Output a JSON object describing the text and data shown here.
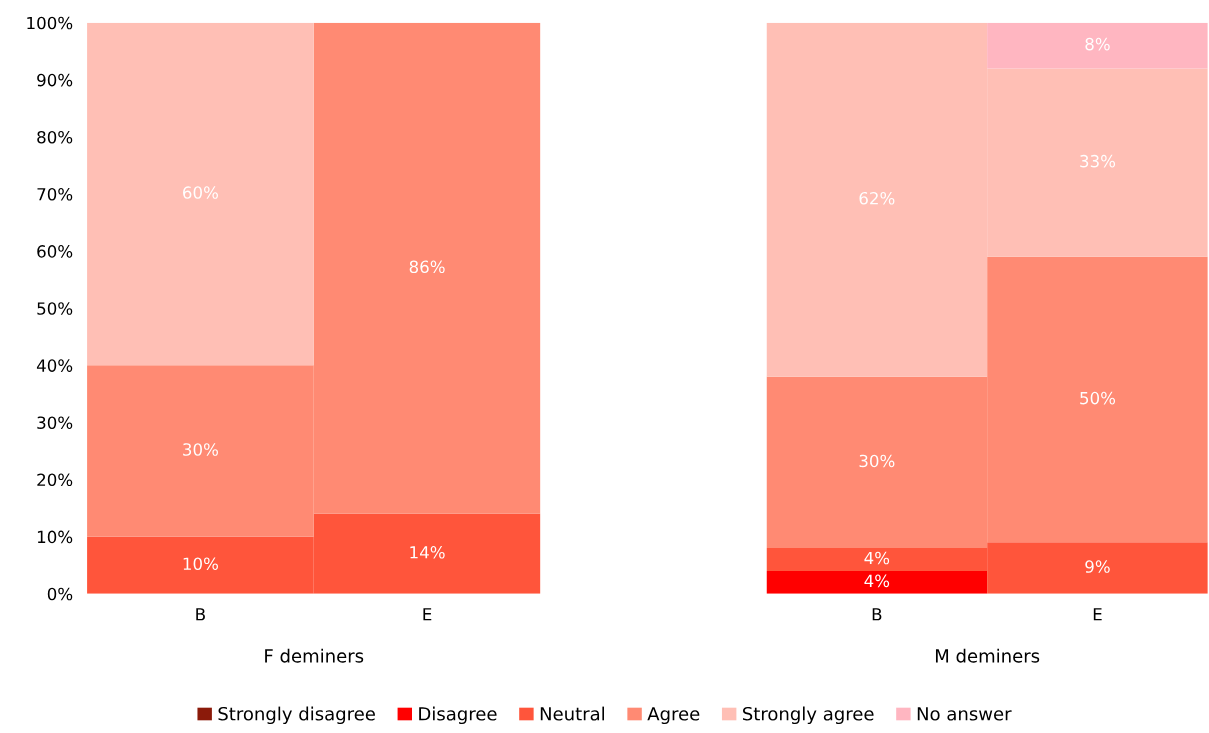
{
  "chart_data": [
    {
      "type": "bar",
      "stacked": true,
      "xlabel": "F deminers",
      "categories": [
        "B",
        "E"
      ],
      "ylim": [
        0,
        100
      ],
      "yticks": [
        {
          "value": 0,
          "label": "0%"
        },
        {
          "value": 10,
          "label": "10%"
        },
        {
          "value": 20,
          "label": "20%"
        },
        {
          "value": 30,
          "label": "30%"
        },
        {
          "value": 40,
          "label": "40%"
        },
        {
          "value": 50,
          "label": "50%"
        },
        {
          "value": 60,
          "label": "60%"
        },
        {
          "value": 70,
          "label": "70%"
        },
        {
          "value": 80,
          "label": "80%"
        },
        {
          "value": 90,
          "label": "90%"
        },
        {
          "value": 100,
          "label": "100%"
        }
      ],
      "grid": false,
      "legend": "bottom",
      "series": [
        {
          "name": "Strongly disagree",
          "color": "#8b1a0a",
          "values": [
            null,
            null
          ]
        },
        {
          "name": "Disagree",
          "color": "#ff0000",
          "values": [
            null,
            null
          ]
        },
        {
          "name": "Neutral",
          "color": "#ff553b",
          "values": [
            10,
            14
          ],
          "value_labels": [
            "10%",
            "14%"
          ]
        },
        {
          "name": "Agree",
          "color": "#ff8a73",
          "values": [
            30,
            86
          ],
          "value_labels": [
            "30%",
            "86%"
          ]
        },
        {
          "name": "Strongly agree",
          "color": "#ffbfb5",
          "values": [
            60,
            null
          ],
          "value_labels": [
            "60%",
            null
          ]
        },
        {
          "name": "No answer",
          "color": "#ffb6c1",
          "values": [
            null,
            null
          ]
        }
      ]
    },
    {
      "type": "bar",
      "stacked": true,
      "xlabel": "M deminers",
      "categories": [
        "B",
        "E"
      ],
      "ylim": [
        0,
        100
      ],
      "tick_labels": "x",
      "grid": false,
      "series": [
        {
          "color": "#8b1a0a",
          "values": [
            null,
            null
          ]
        },
        {
          "color": "#ff0000",
          "values": [
            4,
            null
          ],
          "value_labels": [
            "4%",
            null
          ]
        },
        {
          "color": "#ff553b",
          "values": [
            4,
            9
          ],
          "value_labels": [
            "4%",
            "9%"
          ]
        },
        {
          "color": "#ff8a73",
          "values": [
            30,
            50
          ],
          "value_labels": [
            "30%",
            "50%"
          ]
        },
        {
          "color": "#ffbfb5",
          "values": [
            62,
            33
          ],
          "value_labels": [
            "62%",
            "33%"
          ]
        },
        {
          "color": "#ffb6c1",
          "values": [
            null,
            8
          ],
          "value_labels": [
            null,
            "8%"
          ]
        }
      ]
    }
  ]
}
